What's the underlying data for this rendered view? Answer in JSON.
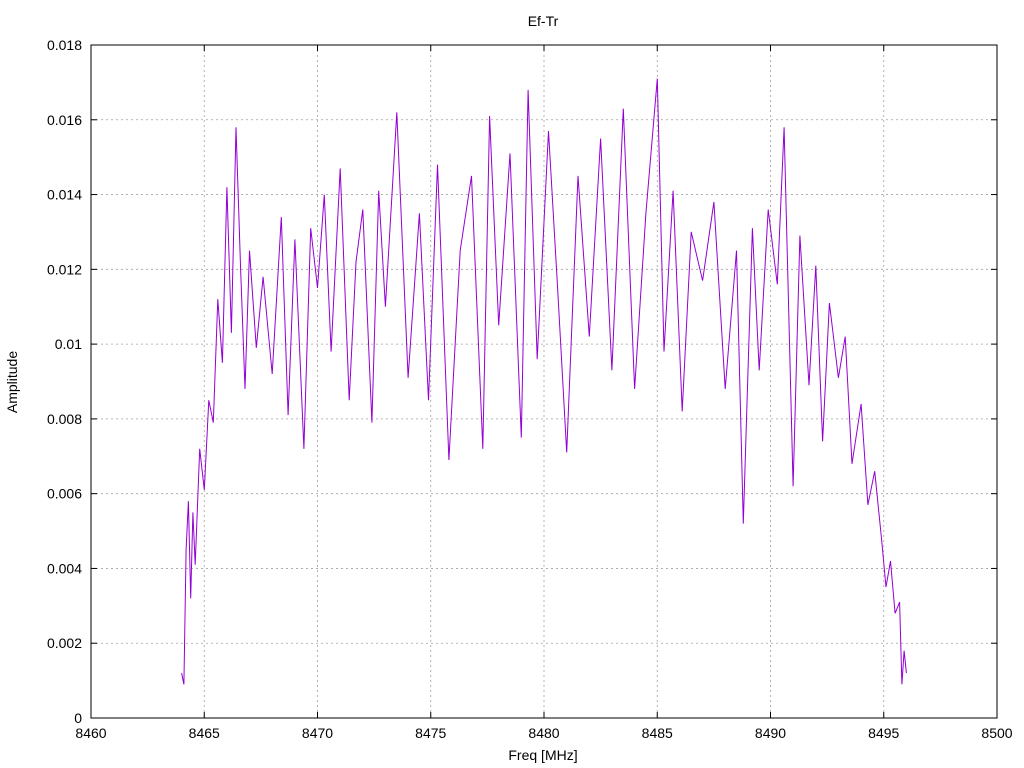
{
  "chart_data": {
    "type": "line",
    "title": "Ef-Tr",
    "xlabel": "Freq [MHz]",
    "ylabel": "Amplitude",
    "xlim": [
      8460,
      8500
    ],
    "ylim": [
      0,
      0.018
    ],
    "x_ticks": [
      8460,
      8465,
      8470,
      8475,
      8480,
      8485,
      8490,
      8495,
      8500
    ],
    "y_ticks": [
      0,
      0.002,
      0.004,
      0.006,
      0.008,
      0.01,
      0.012,
      0.014,
      0.016,
      0.018
    ],
    "x_tick_labels": [
      "8460",
      "8465",
      "8470",
      "8475",
      "8480",
      "8485",
      "8490",
      "8495",
      "8500"
    ],
    "y_tick_labels": [
      "0",
      "0.002",
      "0.004",
      "0.006",
      "0.008",
      "0.01",
      "0.012",
      "0.014",
      "0.016",
      "0.018"
    ],
    "grid": true,
    "legend": "none",
    "line_color": "#9400d3",
    "series": [
      {
        "x": [
          8464.0,
          8464.1,
          8464.2,
          8464.3,
          8464.4,
          8464.5,
          8464.6,
          8464.8,
          8465.0,
          8465.2,
          8465.4,
          8465.6,
          8465.8,
          8466.0,
          8466.2,
          8466.4,
          8466.6,
          8466.8,
          8467.0,
          8467.3,
          8467.6,
          8468.0,
          8468.4,
          8468.7,
          8469.0,
          8469.4,
          8469.7,
          8470.0,
          8470.3,
          8470.6,
          8471.0,
          8471.4,
          8471.7,
          8472.0,
          8472.4,
          8472.7,
          8473.0,
          8473.5,
          8474.0,
          8474.5,
          8474.9,
          8475.3,
          8475.8,
          8476.3,
          8476.8,
          8477.3,
          8477.6,
          8478.0,
          8478.5,
          8479.0,
          8479.3,
          8479.7,
          8480.2,
          8480.6,
          8481.0,
          8481.5,
          8482.0,
          8482.5,
          8483.0,
          8483.5,
          8484.0,
          8484.5,
          8485.0,
          8485.3,
          8485.7,
          8486.1,
          8486.5,
          8487.0,
          8487.5,
          8488.0,
          8488.5,
          8488.8,
          8489.2,
          8489.5,
          8489.9,
          8490.3,
          8490.6,
          8491.0,
          8491.3,
          8491.7,
          8492.0,
          8492.3,
          8492.6,
          8493.0,
          8493.3,
          8493.6,
          8494.0,
          8494.3,
          8494.6,
          8494.9,
          8495.1,
          8495.3,
          8495.5,
          8495.7,
          8495.8,
          8495.9,
          8496.0
        ],
        "y": [
          0.0012,
          0.0009,
          0.0045,
          0.0058,
          0.0032,
          0.0055,
          0.0041,
          0.0072,
          0.0061,
          0.0085,
          0.0079,
          0.0112,
          0.0095,
          0.0142,
          0.0103,
          0.0158,
          0.0121,
          0.0088,
          0.0125,
          0.0099,
          0.0118,
          0.0092,
          0.0134,
          0.0081,
          0.0128,
          0.0072,
          0.0131,
          0.0115,
          0.014,
          0.0098,
          0.0147,
          0.0085,
          0.0122,
          0.0136,
          0.0079,
          0.0141,
          0.011,
          0.0162,
          0.0091,
          0.0135,
          0.0085,
          0.0148,
          0.0069,
          0.0125,
          0.0145,
          0.0072,
          0.0161,
          0.0105,
          0.0151,
          0.0075,
          0.0168,
          0.0096,
          0.0157,
          0.0115,
          0.0071,
          0.0145,
          0.0102,
          0.0155,
          0.0093,
          0.0163,
          0.0088,
          0.0135,
          0.0171,
          0.0098,
          0.0141,
          0.0082,
          0.013,
          0.0117,
          0.0138,
          0.0088,
          0.0125,
          0.0052,
          0.0131,
          0.0093,
          0.0136,
          0.0116,
          0.0158,
          0.0062,
          0.0129,
          0.0089,
          0.0121,
          0.0074,
          0.0111,
          0.0091,
          0.0102,
          0.0068,
          0.0084,
          0.0057,
          0.0066,
          0.0048,
          0.0035,
          0.0042,
          0.0028,
          0.0031,
          0.0009,
          0.0018,
          0.0012
        ]
      }
    ]
  }
}
